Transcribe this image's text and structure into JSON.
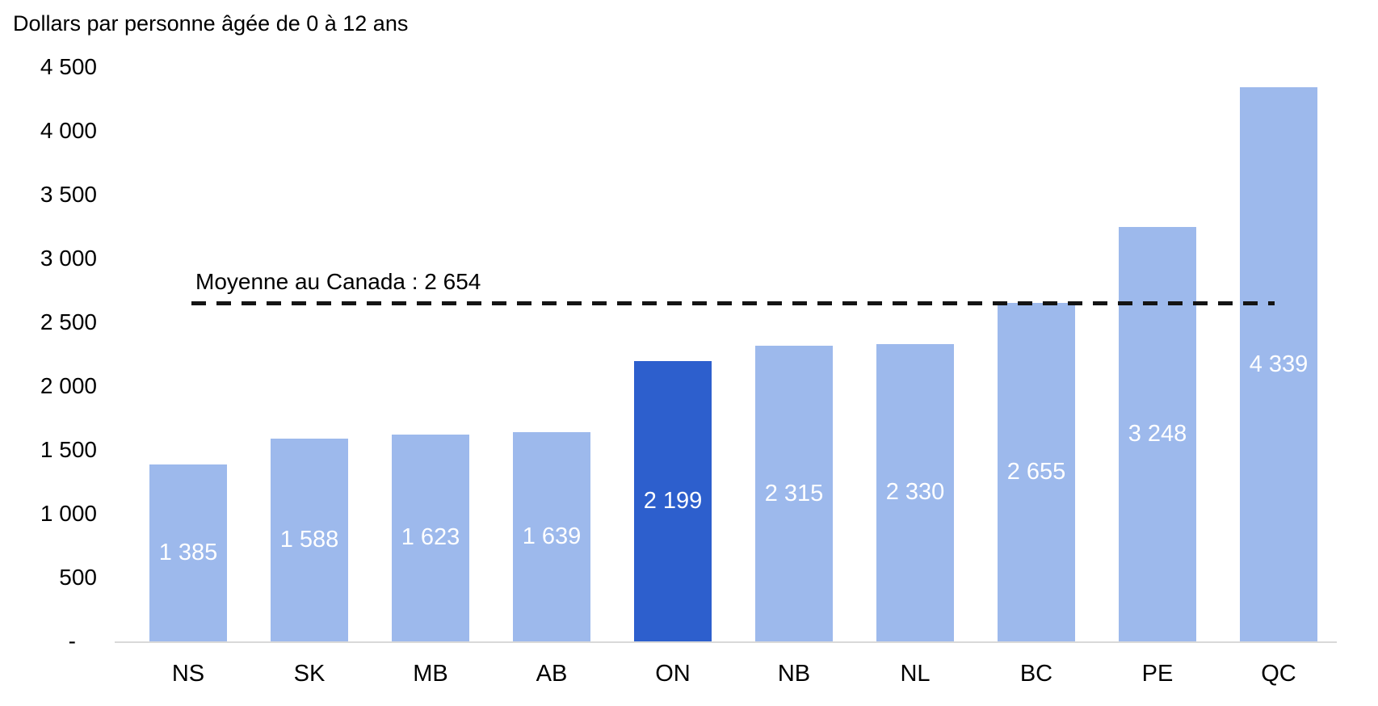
{
  "chart_data": {
    "type": "bar",
    "title": "Dollars par personne âgée de 0 à 12 ans",
    "categories": [
      "NS",
      "SK",
      "MB",
      "AB",
      "ON",
      "NB",
      "NL",
      "BC",
      "PE",
      "QC"
    ],
    "values": [
      1385,
      1588,
      1623,
      1639,
      2199,
      2315,
      2330,
      2655,
      3248,
      4339
    ],
    "value_labels": [
      "1 385",
      "1 588",
      "1 623",
      "1 639",
      "2 199",
      "2 315",
      "2 330",
      "2 655",
      "3 248",
      "4 339"
    ],
    "highlight_category": "ON",
    "ylim": [
      0,
      4500
    ],
    "ytick_step": 500,
    "ytick_labels": [
      "-",
      "500",
      "1 000",
      "1 500",
      "2 000",
      "2 500",
      "3 000",
      "3 500",
      "4 000",
      "4 500"
    ],
    "grid": false,
    "legend": "none",
    "reference_line": {
      "value": 2654,
      "label": "Moyenne au Canada : 2 654"
    },
    "colors": {
      "bar": "#9DB9EC",
      "highlight_bar": "#2D5FCD",
      "value_label": "#FFFFFF",
      "axis_line": "#D9D9D9",
      "reference_line": "#141414",
      "text": "#000000"
    }
  }
}
